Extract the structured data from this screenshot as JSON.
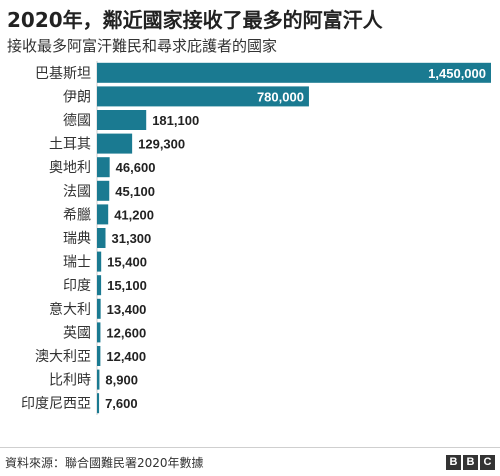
{
  "header": {
    "title": "2020年，鄰近國家接收了最多的阿富汗人",
    "subtitle": "接收最多阿富汗難民和尋求庇護者的國家"
  },
  "footer": {
    "source": "資料來源：聯合國難民署2020年數據",
    "logo_letters": [
      "B",
      "B",
      "C"
    ]
  },
  "colors": {
    "bar": "#1a7a91",
    "label_inside": "#ffffff",
    "label_outside": "#222222",
    "axis_text": "#333333"
  },
  "chart_data": {
    "type": "bar",
    "orientation": "horizontal",
    "title": "2020年，鄰近國家接收了最多的阿富汗人",
    "subtitle": "接收最多阿富汗難民和尋求庇護者的國家",
    "categories": [
      "巴基斯坦",
      "伊朗",
      "德國",
      "土耳其",
      "奧地利",
      "法國",
      "希臘",
      "瑞典",
      "瑞士",
      "印度",
      "意大利",
      "英國",
      "澳大利亞",
      "比利時",
      "印度尼西亞"
    ],
    "values": [
      1450000,
      780000,
      181100,
      129300,
      46600,
      45100,
      41200,
      31300,
      15400,
      15100,
      13400,
      12600,
      12400,
      8900,
      7600
    ],
    "value_labels": [
      "1,450,000",
      "780,000",
      "181,100",
      "129,300",
      "46,600",
      "45,100",
      "41,200",
      "31,300",
      "15,400",
      "15,100",
      "13,400",
      "12,600",
      "12,400",
      "8,900",
      "7,600"
    ],
    "xlim": [
      0,
      1450000
    ],
    "grid": false,
    "legend": "none"
  }
}
